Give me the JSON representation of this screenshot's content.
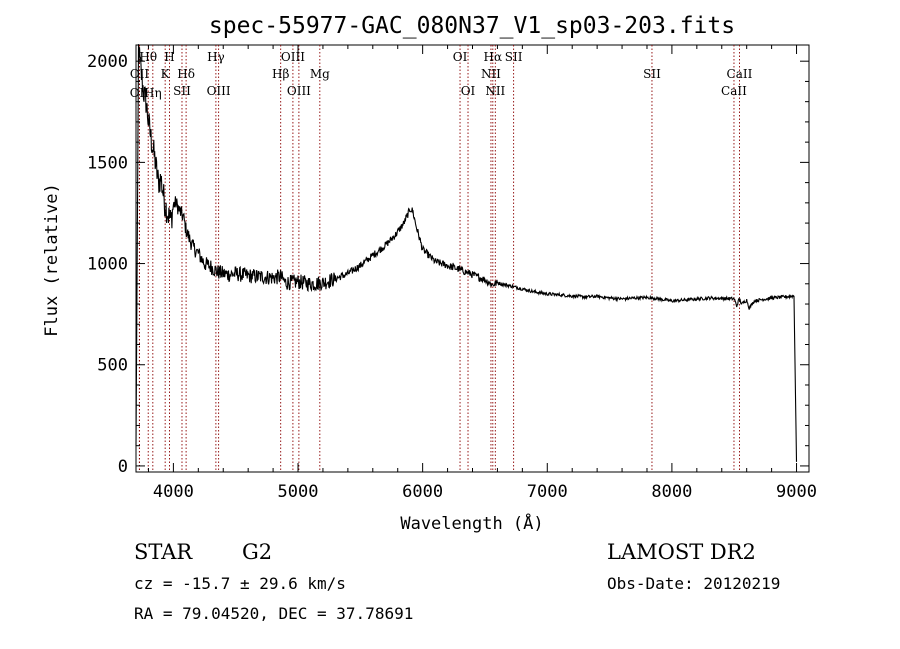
{
  "header": {
    "title": "spec-55977-GAC_080N37_V1_sp03-203.fits"
  },
  "info": {
    "class": "STAR",
    "subclass": "G2",
    "survey": "LAMOST DR2",
    "cz": "cz = -15.7 ± 29.6 km/s",
    "obs_date": "Obs-Date: 20120219",
    "coords": "RA =  79.04520, DEC =  37.78691"
  },
  "chart_data": {
    "type": "line",
    "title": "spec-55977-GAC_080N37_V1_sp03-203.fits",
    "xlabel": "Wavelength (Å)",
    "ylabel": "Flux (relative)",
    "xlim": [
      3700,
      9100
    ],
    "ylim": [
      -30,
      2080
    ],
    "xticks": [
      4000,
      5000,
      6000,
      7000,
      8000,
      9000
    ],
    "yticks": [
      0,
      500,
      1000,
      1500,
      2000
    ],
    "grid": false,
    "line_color": "#000000",
    "marker_color": "#8b0000",
    "series": [
      {
        "x": [
          3700,
          3720,
          3740,
          3760,
          3780,
          3800,
          3820,
          3850,
          3880,
          3900,
          3930,
          3960,
          3980,
          4000,
          4020,
          4050,
          4080,
          4100,
          4130,
          4160,
          4200,
          4250,
          4300,
          4350,
          4400,
          4450,
          4500,
          4600,
          4700,
          4800,
          4860,
          4900,
          5000,
          5100,
          5200,
          5300,
          5400,
          5500,
          5600,
          5700,
          5780,
          5850,
          5900,
          5920,
          5950,
          6000,
          6050,
          6100,
          6150,
          6200,
          6300,
          6400,
          6500,
          6560,
          6600,
          6700,
          6800,
          6900,
          7000,
          7100,
          7200,
          7300,
          7400,
          7500,
          7600,
          7700,
          7800,
          7850,
          7900,
          8000,
          8100,
          8200,
          8300,
          8400,
          8500,
          8520,
          8540,
          8560,
          8600,
          8620,
          8660,
          8700,
          8800,
          8900,
          8980,
          9000
        ],
        "y": [
          100,
          2060,
          1950,
          1850,
          1800,
          1700,
          1620,
          1520,
          1400,
          1420,
          1300,
          1240,
          1210,
          1290,
          1300,
          1260,
          1230,
          1170,
          1120,
          1080,
          1050,
          1000,
          985,
          960,
          950,
          945,
          950,
          940,
          935,
          930,
          935,
          905,
          910,
          900,
          905,
          925,
          950,
          990,
          1040,
          1090,
          1140,
          1200,
          1270,
          1260,
          1180,
          1070,
          1040,
          1010,
          1000,
          990,
          970,
          945,
          920,
          895,
          905,
          890,
          875,
          860,
          850,
          845,
          840,
          835,
          838,
          830,
          825,
          830,
          832,
          830,
          825,
          815,
          820,
          825,
          830,
          828,
          826,
          790,
          825,
          800,
          820,
          780,
          815,
          820,
          830,
          835,
          840,
          20
        ]
      }
    ],
    "lines": [
      {
        "wavelength": 3727,
        "label": "OII",
        "row": 4
      },
      {
        "wavelength": 3728,
        "label": "OII",
        "row": 3
      },
      {
        "wavelength": 3798,
        "label": "Hθ",
        "row": 1
      },
      {
        "wavelength": 3835,
        "label": "Hη",
        "row": 4
      },
      {
        "wavelength": 3934,
        "label": "K",
        "row": 3
      },
      {
        "wavelength": 3969,
        "label": "H",
        "row": 1
      },
      {
        "wavelength": 4069,
        "label": "SII",
        "row": 5
      },
      {
        "wavelength": 4102,
        "label": "Hδ",
        "row": 3
      },
      {
        "wavelength": 4341,
        "label": "Hγ",
        "row": 1
      },
      {
        "wavelength": 4363,
        "label": "OIII",
        "row": 5
      },
      {
        "wavelength": 4861,
        "label": "Hβ",
        "row": 3
      },
      {
        "wavelength": 4959,
        "label": "OIII",
        "row": 1
      },
      {
        "wavelength": 5007,
        "label": "OIII",
        "row": 5
      },
      {
        "wavelength": 5175,
        "label": "Mg",
        "row": 3
      },
      {
        "wavelength": 6300,
        "label": "OI",
        "row": 1
      },
      {
        "wavelength": 6364,
        "label": "OI",
        "row": 5
      },
      {
        "wavelength": 6548,
        "label": "NII",
        "row": 3
      },
      {
        "wavelength": 6563,
        "label": "Hα",
        "row": 1
      },
      {
        "wavelength": 6583,
        "label": "NII",
        "row": 5
      },
      {
        "wavelength": 6730,
        "label": "SII",
        "row": 1
      },
      {
        "wavelength": 7840,
        "label": "SII",
        "row": 3
      },
      {
        "wavelength": 8498,
        "label": "CaII",
        "row": 5
      },
      {
        "wavelength": 8542,
        "label": "CaII",
        "row": 3
      }
    ]
  }
}
